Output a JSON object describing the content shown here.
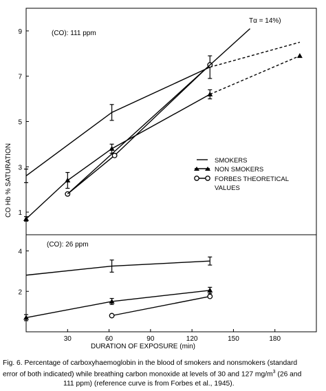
{
  "figure": {
    "ylabel": "CO Hb % SATURATION",
    "xlabel": "DURATION OF EXPOSURE (min)",
    "x_ticks": [
      "30",
      "60",
      "90",
      "120",
      "150",
      "180"
    ],
    "annotation_top": "Tα = 14%)",
    "legend": {
      "smokers": "SMOKERS",
      "non_smokers": "NON SMOKERS",
      "forbes_line1": "FORBES THEORETICAL",
      "forbes_line2": "VALUES"
    }
  },
  "caption": {
    "line1": "Fig. 6. Percentage of carboxyhaemoglobin in the blood of smokers and nonsmokers (standard",
    "line2a": "error of both indicated) while breathing carbon monoxide at levels of 30 and 127 mg/m",
    "line2_sup": "3",
    "line2b": "  (26 and",
    "line3": "111 ppm) (reference curve is from Forbes et al., 1945)."
  },
  "chart_data": [
    {
      "type": "line",
      "title": "(CO): 111 ppm",
      "xlabel": "DURATION OF EXPOSURE (min)",
      "ylabel": "CO Hb % SATURATION",
      "xlim": [
        0,
        210
      ],
      "ylim": [
        0,
        10
      ],
      "y_ticks": [
        "1",
        "3",
        "5",
        "7",
        "9"
      ],
      "series": [
        {
          "name": "SMOKERS",
          "marker": "none",
          "x": [
            0,
            62,
            133
          ],
          "y": [
            2.6,
            5.4,
            7.4
          ],
          "err": [
            0.3,
            0.35,
            0.5
          ],
          "extension": {
            "x": [
              133,
              198
            ],
            "y": [
              7.4,
              8.5
            ],
            "style": "dashed"
          }
        },
        {
          "name": "NON SMOKERS",
          "marker": "triangle",
          "x": [
            0,
            30,
            62,
            133
          ],
          "y": [
            0.7,
            2.4,
            3.8,
            6.2
          ],
          "err": [
            0.1,
            0.35,
            0.2,
            0.2
          ],
          "extension": {
            "x": [
              133,
              198
            ],
            "y": [
              6.2,
              7.9
            ],
            "style": "dashed"
          }
        },
        {
          "name": "FORBES THEORETICAL VALUES",
          "marker": "circle",
          "x": [
            30,
            64,
            133
          ],
          "y": [
            1.8,
            3.5,
            7.5
          ],
          "err": [
            0,
            0,
            0
          ]
        },
        {
          "name": "Tα = 14%)",
          "marker": "none",
          "x": [
            30,
            162
          ],
          "y": [
            1.8,
            9.1
          ],
          "err": []
        }
      ]
    },
    {
      "type": "line",
      "title": "(CO): 26 ppm",
      "xlabel": "DURATION OF EXPOSURE (min)",
      "ylabel": "CO Hb % SATURATION",
      "xlim": [
        0,
        210
      ],
      "ylim": [
        0,
        4.8
      ],
      "y_ticks": [
        "2",
        "4"
      ],
      "series": [
        {
          "name": "SMOKERS",
          "marker": "none",
          "x": [
            0,
            62,
            133
          ],
          "y": [
            2.8,
            3.25,
            3.5
          ],
          "err": [
            0,
            0.3,
            0.2
          ]
        },
        {
          "name": "NON SMOKERS",
          "marker": "triangle",
          "x": [
            0,
            62,
            133
          ],
          "y": [
            0.7,
            1.5,
            2.05
          ],
          "err": [
            0.15,
            0.15,
            0.15
          ]
        },
        {
          "name": "FORBES THEORETICAL VALUES",
          "marker": "circle",
          "x": [
            62,
            133
          ],
          "y": [
            0.8,
            1.75
          ],
          "err": [
            0,
            0
          ]
        }
      ]
    }
  ]
}
